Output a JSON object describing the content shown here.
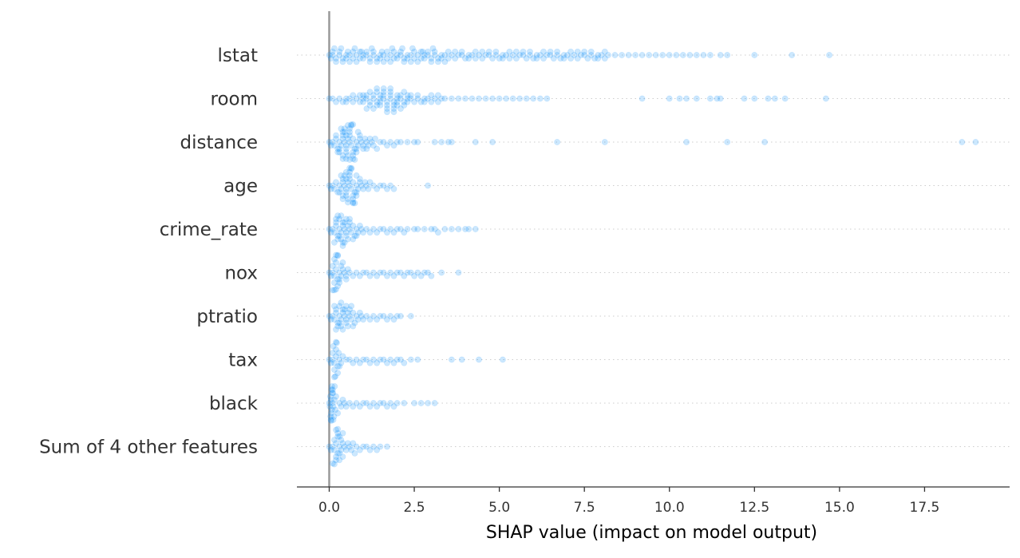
{
  "chart_data": {
    "type": "scatter",
    "title": "",
    "xlabel": "SHAP value (impact on model output)",
    "ylabel": "",
    "xlim": [
      -0.95,
      20.0
    ],
    "x_ticks": [
      0.0,
      2.5,
      5.0,
      7.5,
      10.0,
      12.5,
      15.0,
      17.5
    ],
    "x_tick_labels": [
      "0.0",
      "2.5",
      "5.0",
      "7.5",
      "10.0",
      "12.5",
      "15.0",
      "17.5"
    ],
    "zero_line": 0.0,
    "point_color": "#008bfb",
    "point_opacity": 0.2,
    "grid": "horizontal-dotted-per-feature",
    "features": [
      {
        "name": "lstat",
        "values": [
          0.0,
          0.05,
          0.1,
          0.2,
          0.3,
          0.4,
          0.5,
          0.6,
          0.7,
          0.8,
          0.9,
          1.0,
          1.1,
          1.2,
          1.3,
          1.4,
          1.5,
          1.6,
          1.7,
          1.8,
          1.9,
          2.0,
          2.1,
          2.2,
          2.3,
          2.4,
          2.5,
          2.6,
          2.7,
          2.8,
          2.9,
          3.0,
          3.1,
          3.2,
          3.3,
          3.4,
          3.5,
          3.6,
          3.7,
          3.8,
          3.9,
          4.0,
          4.1,
          4.2,
          4.3,
          4.4,
          4.5,
          4.6,
          4.7,
          4.8,
          4.9,
          5.0,
          5.1,
          5.2,
          5.3,
          5.4,
          5.5,
          5.6,
          5.7,
          5.8,
          5.9,
          6.0,
          6.1,
          6.2,
          6.3,
          6.4,
          6.5,
          6.6,
          6.7,
          6.8,
          6.9,
          7.0,
          7.1,
          7.2,
          7.3,
          7.4,
          7.5,
          7.6,
          7.7,
          7.8,
          7.9,
          8.0,
          8.1,
          8.2,
          8.4,
          8.6,
          8.8,
          9.0,
          9.2,
          9.4,
          9.6,
          9.8,
          10.0,
          10.2,
          10.4,
          10.6,
          10.8,
          11.0,
          11.2,
          11.5,
          11.7,
          12.5,
          13.6,
          14.7,
          0.1,
          0.3,
          0.5,
          0.7,
          0.9,
          1.1,
          1.3,
          1.5,
          1.7,
          1.9,
          2.1,
          2.3,
          2.5,
          2.7,
          2.9,
          3.1,
          3.3,
          3.5,
          3.7,
          3.9,
          4.1,
          4.3,
          4.5,
          4.7,
          4.9,
          5.1,
          5.3,
          5.5,
          5.7,
          5.9,
          6.1,
          6.3,
          6.5,
          6.7,
          6.9,
          7.1,
          7.3,
          7.5,
          7.7,
          7.9,
          8.1,
          0.2,
          0.4,
          0.6,
          0.8,
          1.0,
          1.2,
          1.4,
          1.6,
          1.8,
          2.0,
          2.2,
          2.4,
          2.6,
          2.8,
          3.0,
          3.2,
          3.4,
          0.15,
          0.35,
          0.55,
          0.75,
          0.95,
          1.25,
          1.55,
          1.85,
          2.15,
          2.45,
          2.75,
          3.05
        ]
      },
      {
        "name": "room",
        "values": [
          0.0,
          0.1,
          0.2,
          0.3,
          0.4,
          0.5,
          0.6,
          0.7,
          0.8,
          0.9,
          1.0,
          1.1,
          1.2,
          1.3,
          1.4,
          1.5,
          1.6,
          1.7,
          1.8,
          1.9,
          2.0,
          2.1,
          2.2,
          2.3,
          2.4,
          2.5,
          2.6,
          2.7,
          2.8,
          2.9,
          3.0,
          3.1,
          3.2,
          3.3,
          3.4,
          3.6,
          3.8,
          4.0,
          4.2,
          4.4,
          4.6,
          4.8,
          5.0,
          5.2,
          5.4,
          5.6,
          5.8,
          6.0,
          6.2,
          6.4,
          9.2,
          10.0,
          10.3,
          10.5,
          10.8,
          11.2,
          11.4,
          11.5,
          12.2,
          12.5,
          12.9,
          13.1,
          13.4,
          14.6,
          0.9,
          1.0,
          1.1,
          1.2,
          1.3,
          1.4,
          1.5,
          1.6,
          1.7,
          1.8,
          1.9,
          2.0,
          2.1,
          2.2,
          2.3,
          2.4,
          1.0,
          1.2,
          1.4,
          1.6,
          1.8,
          2.0,
          2.2,
          1.1,
          1.3,
          1.5,
          1.7,
          1.9,
          2.1,
          2.3,
          1.4,
          1.6,
          1.8,
          2.0,
          0.5,
          0.7,
          1.5,
          1.7,
          1.9,
          2.6,
          2.8,
          3.0,
          3.2
        ]
      },
      {
        "name": "distance",
        "values": [
          0.0,
          0.05,
          0.1,
          0.15,
          0.2,
          0.25,
          0.3,
          0.35,
          0.4,
          0.45,
          0.5,
          0.55,
          0.6,
          0.65,
          0.7,
          0.75,
          0.8,
          0.85,
          0.9,
          0.95,
          1.0,
          1.05,
          1.1,
          1.15,
          1.2,
          1.25,
          1.3,
          1.35,
          1.4,
          1.5,
          1.6,
          1.7,
          1.8,
          1.9,
          2.0,
          2.1,
          2.3,
          2.5,
          2.6,
          3.1,
          3.3,
          3.5,
          3.6,
          4.3,
          4.8,
          6.7,
          8.1,
          10.5,
          11.7,
          12.8,
          18.6,
          19.0,
          0.2,
          0.3,
          0.4,
          0.5,
          0.6,
          0.7,
          0.8,
          0.9,
          1.0,
          1.1,
          0.3,
          0.4,
          0.5,
          0.6,
          0.7,
          0.8,
          0.4,
          0.5,
          0.6,
          0.7,
          0.35,
          0.45,
          0.55,
          0.65,
          0.75,
          0.85,
          0.25,
          0.45,
          0.65,
          0.5,
          0.6,
          0.4,
          0.55,
          0.7
        ]
      },
      {
        "name": "age",
        "values": [
          0.0,
          0.05,
          0.1,
          0.15,
          0.2,
          0.25,
          0.3,
          0.35,
          0.4,
          0.45,
          0.5,
          0.55,
          0.6,
          0.65,
          0.7,
          0.75,
          0.8,
          0.85,
          0.9,
          0.95,
          1.0,
          1.05,
          1.1,
          1.15,
          1.2,
          1.3,
          1.4,
          1.5,
          1.6,
          1.7,
          1.8,
          1.9,
          2.9,
          0.3,
          0.4,
          0.5,
          0.6,
          0.7,
          0.8,
          0.9,
          0.4,
          0.5,
          0.6,
          0.7,
          0.8,
          0.5,
          0.6,
          0.7,
          0.45,
          0.55,
          0.65,
          0.75,
          0.35,
          0.6,
          0.5,
          0.7,
          0.4,
          0.8,
          0.55,
          0.65
        ]
      },
      {
        "name": "crime_rate",
        "values": [
          0.0,
          0.05,
          0.1,
          0.15,
          0.2,
          0.25,
          0.3,
          0.35,
          0.4,
          0.45,
          0.5,
          0.55,
          0.6,
          0.65,
          0.7,
          0.75,
          0.8,
          0.85,
          0.9,
          0.95,
          1.0,
          1.1,
          1.2,
          1.3,
          1.4,
          1.5,
          1.6,
          1.7,
          1.8,
          1.9,
          2.0,
          2.1,
          2.2,
          2.3,
          2.5,
          2.6,
          2.8,
          3.0,
          3.1,
          3.2,
          3.4,
          3.6,
          3.8,
          4.0,
          4.1,
          4.3,
          0.2,
          0.3,
          0.4,
          0.5,
          0.6,
          0.7,
          0.8,
          0.25,
          0.35,
          0.45,
          0.55,
          0.3,
          0.4,
          0.5,
          0.2,
          0.35,
          0.45,
          0.6,
          0.15,
          0.25,
          0.4
        ]
      },
      {
        "name": "nox",
        "values": [
          0.0,
          0.05,
          0.1,
          0.15,
          0.2,
          0.25,
          0.3,
          0.35,
          0.4,
          0.45,
          0.5,
          0.55,
          0.6,
          0.7,
          0.8,
          0.9,
          1.0,
          1.1,
          1.2,
          1.3,
          1.4,
          1.5,
          1.6,
          1.7,
          1.8,
          1.9,
          2.0,
          2.1,
          2.2,
          2.3,
          2.4,
          2.5,
          2.6,
          2.7,
          2.8,
          2.9,
          3.0,
          3.3,
          3.8,
          0.1,
          0.15,
          0.2,
          0.25,
          0.3,
          0.35,
          0.15,
          0.2,
          0.25,
          0.1,
          0.2,
          0.3,
          0.4,
          0.5,
          0.15,
          0.25
        ]
      },
      {
        "name": "ptratio",
        "values": [
          0.0,
          0.05,
          0.1,
          0.15,
          0.2,
          0.25,
          0.3,
          0.35,
          0.4,
          0.45,
          0.5,
          0.55,
          0.6,
          0.65,
          0.7,
          0.75,
          0.8,
          0.85,
          0.9,
          0.95,
          1.0,
          1.1,
          1.2,
          1.3,
          1.4,
          1.5,
          1.6,
          1.7,
          1.8,
          1.9,
          2.0,
          2.1,
          2.4,
          0.2,
          0.3,
          0.4,
          0.5,
          0.6,
          0.7,
          0.25,
          0.35,
          0.45,
          0.55,
          0.3,
          0.4,
          0.15,
          0.5,
          0.65,
          0.35,
          0.2
        ]
      },
      {
        "name": "tax",
        "values": [
          0.0,
          0.05,
          0.1,
          0.15,
          0.2,
          0.25,
          0.3,
          0.35,
          0.4,
          0.5,
          0.6,
          0.7,
          0.8,
          0.9,
          1.0,
          1.1,
          1.2,
          1.3,
          1.4,
          1.5,
          1.6,
          1.7,
          1.8,
          1.9,
          2.0,
          2.1,
          2.2,
          2.4,
          2.6,
          3.6,
          3.9,
          4.4,
          5.1,
          0.1,
          0.15,
          0.2,
          0.25,
          0.3,
          0.12,
          0.18,
          0.22,
          0.28,
          0.15,
          0.2
        ]
      },
      {
        "name": "black",
        "values": [
          0.0,
          0.02,
          0.05,
          0.08,
          0.1,
          0.12,
          0.15,
          0.18,
          0.2,
          0.25,
          0.3,
          0.35,
          0.4,
          0.45,
          0.5,
          0.6,
          0.7,
          0.8,
          0.9,
          1.0,
          1.1,
          1.2,
          1.3,
          1.4,
          1.5,
          1.6,
          1.7,
          1.8,
          1.9,
          2.0,
          2.2,
          2.5,
          2.7,
          2.9,
          3.1,
          0.03,
          0.06,
          0.09,
          0.11,
          0.14,
          0.04,
          0.07,
          0.1,
          0.05,
          0.08,
          0.12,
          0.16,
          0.06
        ]
      },
      {
        "name": "Sum of 4 other features",
        "values": [
          0.0,
          0.05,
          0.1,
          0.15,
          0.2,
          0.25,
          0.3,
          0.35,
          0.4,
          0.45,
          0.5,
          0.55,
          0.6,
          0.65,
          0.7,
          0.75,
          0.8,
          0.9,
          1.0,
          1.1,
          1.2,
          1.3,
          1.4,
          1.5,
          1.7,
          0.15,
          0.2,
          0.25,
          0.3,
          0.35,
          0.4,
          0.2,
          0.25,
          0.3,
          0.1,
          0.2,
          0.3,
          0.4,
          0.15,
          0.25
        ]
      }
    ]
  }
}
